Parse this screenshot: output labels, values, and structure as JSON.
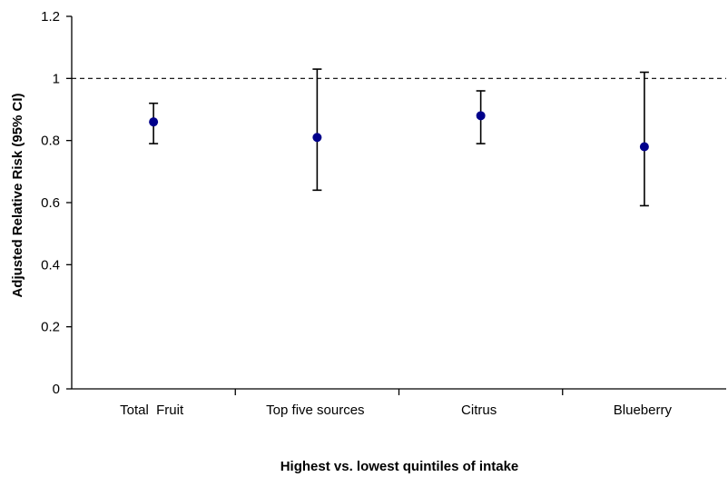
{
  "chart_data": {
    "type": "scatter",
    "subtype": "point-estimate-with-error-bars",
    "xlabel": "Highest vs. lowest quintiles of intake",
    "ylabel": "Adjusted Relative Risk (95% CI)",
    "ylim": [
      0,
      1.2
    ],
    "yticks": [
      "0",
      "0.2",
      "0.4",
      "0.6",
      "0.8",
      "1",
      "1.2"
    ],
    "ytick_values": [
      0,
      0.2,
      0.4,
      0.6,
      0.8,
      1.0,
      1.2
    ],
    "categories": [
      "Total  Fruit",
      "Top five sources",
      "Citrus",
      "Blueberry"
    ],
    "values": [
      0.86,
      0.81,
      0.88,
      0.78
    ],
    "lower": [
      0.79,
      0.64,
      0.79,
      0.59
    ],
    "upper": [
      0.92,
      1.03,
      0.96,
      1.02
    ],
    "reference_line": 1.0,
    "grid": false,
    "legend": "none",
    "marker_color": "#00008B",
    "errorbar_color": "#000000"
  }
}
